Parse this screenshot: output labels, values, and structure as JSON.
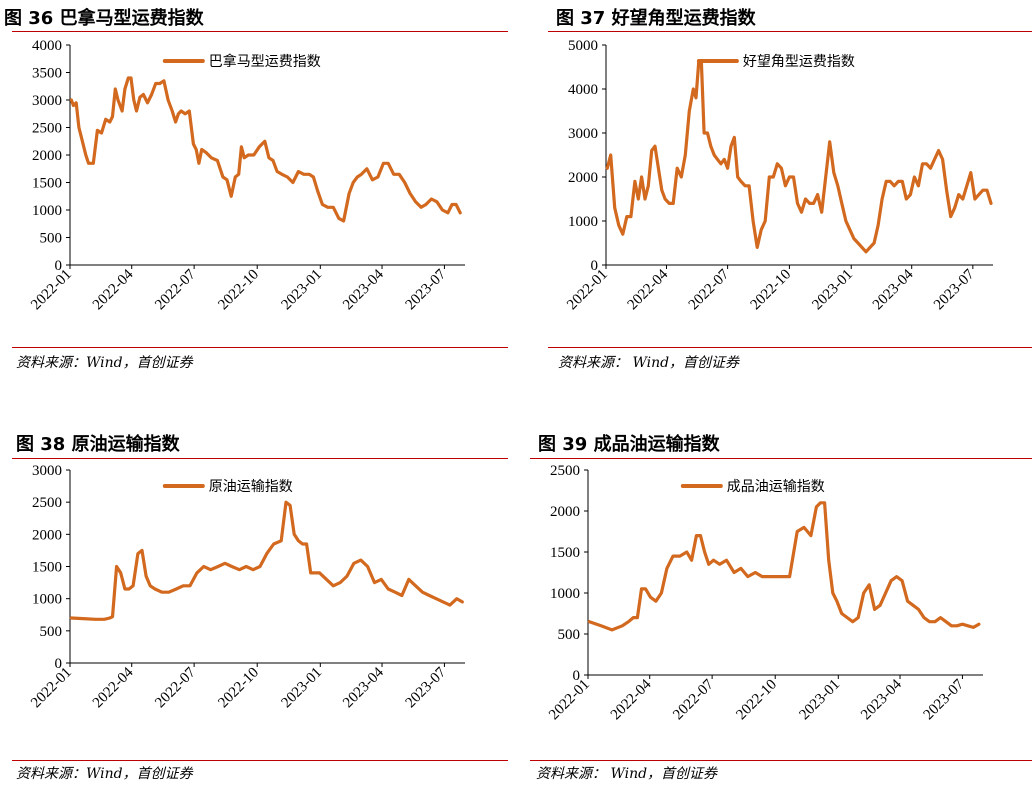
{
  "line_color": "#d2691e",
  "rule_color": "#c00000",
  "chart_data": [
    {
      "type": "line",
      "figure_label": "图 36 巴拿马型运费指数",
      "source": "资料来源：Wind，首创证券",
      "ylim": [
        0,
        4000
      ],
      "yticks": [
        "0",
        "500",
        "1000",
        "1500",
        "2000",
        "2500",
        "3000",
        "3500",
        "4000"
      ],
      "xlim": [
        "2022-01-01",
        "2023-07-31"
      ],
      "xticks": [
        {
          "label": "2022-01",
          "date": "2022-01-01"
        },
        {
          "label": "2022-04",
          "date": "2022-04-01"
        },
        {
          "label": "2022-07",
          "date": "2022-07-01"
        },
        {
          "label": "2022-10",
          "date": "2022-10-01"
        },
        {
          "label": "2023-01",
          "date": "2023-01-01"
        },
        {
          "label": "2023-04",
          "date": "2023-04-01"
        },
        {
          "label": "2023-07",
          "date": "2023-07-01"
        }
      ],
      "series": [
        {
          "name": "巴拿马型运费指数",
          "x": [
            "2022-01-03",
            "2022-01-06",
            "2022-01-10",
            "2022-01-14",
            "2022-01-18",
            "2022-01-24",
            "2022-01-28",
            "2022-02-04",
            "2022-02-10",
            "2022-02-16",
            "2022-02-22",
            "2022-02-28",
            "2022-03-04",
            "2022-03-08",
            "2022-03-12",
            "2022-03-18",
            "2022-03-22",
            "2022-03-27",
            "2022-03-31",
            "2022-04-04",
            "2022-04-08",
            "2022-04-13",
            "2022-04-18",
            "2022-04-24",
            "2022-04-30",
            "2022-05-06",
            "2022-05-12",
            "2022-05-18",
            "2022-05-24",
            "2022-05-30",
            "2022-06-04",
            "2022-06-08",
            "2022-06-12",
            "2022-06-18",
            "2022-06-24",
            "2022-06-30",
            "2022-07-04",
            "2022-07-08",
            "2022-07-12",
            "2022-07-18",
            "2022-07-26",
            "2022-08-04",
            "2022-08-12",
            "2022-08-18",
            "2022-08-24",
            "2022-08-30",
            "2022-09-04",
            "2022-09-08",
            "2022-09-12",
            "2022-09-18",
            "2022-09-26",
            "2022-10-04",
            "2022-10-12",
            "2022-10-18",
            "2022-10-24",
            "2022-10-30",
            "2022-11-06",
            "2022-11-14",
            "2022-11-22",
            "2022-11-30",
            "2022-12-08",
            "2022-12-16",
            "2022-12-22",
            "2022-12-28",
            "2023-01-04",
            "2023-01-12",
            "2023-01-20",
            "2023-01-28",
            "2023-02-04",
            "2023-02-12",
            "2023-02-18",
            "2023-02-24",
            "2023-03-02",
            "2023-03-10",
            "2023-03-18",
            "2023-03-26",
            "2023-04-03",
            "2023-04-10",
            "2023-04-18",
            "2023-04-26",
            "2023-05-04",
            "2023-05-12",
            "2023-05-20",
            "2023-05-28",
            "2023-06-04",
            "2023-06-12",
            "2023-06-20",
            "2023-06-28",
            "2023-07-06",
            "2023-07-12",
            "2023-07-18",
            "2023-07-24"
          ],
          "values": [
            3000,
            2900,
            2950,
            2500,
            2300,
            2000,
            1850,
            1850,
            2450,
            2400,
            2650,
            2600,
            2700,
            3200,
            3000,
            2800,
            3200,
            3400,
            3400,
            3000,
            2800,
            3050,
            3100,
            2950,
            3100,
            3300,
            3300,
            3350,
            3000,
            2800,
            2600,
            2750,
            2800,
            2750,
            2800,
            2200,
            2100,
            1850,
            2100,
            2050,
            1950,
            1900,
            1600,
            1550,
            1250,
            1600,
            1650,
            2150,
            1950,
            2000,
            2000,
            2150,
            2250,
            1950,
            1900,
            1700,
            1650,
            1600,
            1500,
            1700,
            1650,
            1650,
            1600,
            1350,
            1100,
            1050,
            1050,
            850,
            800,
            1300,
            1500,
            1600,
            1650,
            1750,
            1550,
            1600,
            1850,
            1850,
            1650,
            1650,
            1500,
            1300,
            1150,
            1050,
            1100,
            1200,
            1150,
            1000,
            950,
            1100,
            1100,
            950
          ]
        }
      ]
    },
    {
      "type": "line",
      "figure_label": "图 37 好望角型运费指数",
      "source": "资料来源： Wind，首创证券",
      "ylim": [
        0,
        5000
      ],
      "yticks": [
        "0",
        "1000",
        "2000",
        "3000",
        "4000",
        "5000"
      ],
      "xlim": [
        "2022-01-01",
        "2023-07-31"
      ],
      "xticks": [
        {
          "label": "2022-01",
          "date": "2022-01-01"
        },
        {
          "label": "2022-04",
          "date": "2022-04-01"
        },
        {
          "label": "2022-07",
          "date": "2022-07-01"
        },
        {
          "label": "2022-10",
          "date": "2022-10-01"
        },
        {
          "label": "2023-01",
          "date": "2023-01-01"
        },
        {
          "label": "2023-04",
          "date": "2023-04-01"
        },
        {
          "label": "2023-07",
          "date": "2023-07-01"
        }
      ],
      "series": [
        {
          "name": "好望角型运费指数",
          "x": [
            "2022-01-03",
            "2022-01-08",
            "2022-01-14",
            "2022-01-20",
            "2022-01-26",
            "2022-02-01",
            "2022-02-07",
            "2022-02-13",
            "2022-02-18",
            "2022-02-23",
            "2022-02-28",
            "2022-03-05",
            "2022-03-10",
            "2022-03-15",
            "2022-03-20",
            "2022-03-25",
            "2022-03-30",
            "2022-04-05",
            "2022-04-11",
            "2022-04-17",
            "2022-04-23",
            "2022-04-29",
            "2022-05-05",
            "2022-05-11",
            "2022-05-15",
            "2022-05-19",
            "2022-05-23",
            "2022-05-27",
            "2022-06-01",
            "2022-06-06",
            "2022-06-11",
            "2022-06-16",
            "2022-06-21",
            "2022-06-26",
            "2022-07-01",
            "2022-07-06",
            "2022-07-11",
            "2022-07-16",
            "2022-07-21",
            "2022-07-27",
            "2022-08-02",
            "2022-08-08",
            "2022-08-14",
            "2022-08-20",
            "2022-08-26",
            "2022-09-01",
            "2022-09-07",
            "2022-09-13",
            "2022-09-19",
            "2022-09-25",
            "2022-10-01",
            "2022-10-07",
            "2022-10-13",
            "2022-10-19",
            "2022-10-25",
            "2022-10-31",
            "2022-11-06",
            "2022-11-12",
            "2022-11-18",
            "2022-11-24",
            "2022-11-30",
            "2022-12-06",
            "2022-12-12",
            "2022-12-18",
            "2022-12-24",
            "2022-12-30",
            "2023-01-05",
            "2023-01-11",
            "2023-01-17",
            "2023-01-23",
            "2023-01-29",
            "2023-02-04",
            "2023-02-10",
            "2023-02-16",
            "2023-02-22",
            "2023-02-28",
            "2023-03-06",
            "2023-03-12",
            "2023-03-18",
            "2023-03-24",
            "2023-03-30",
            "2023-04-05",
            "2023-04-11",
            "2023-04-17",
            "2023-04-23",
            "2023-04-29",
            "2023-05-05",
            "2023-05-11",
            "2023-05-17",
            "2023-05-23",
            "2023-05-29",
            "2023-06-04",
            "2023-06-10",
            "2023-06-16",
            "2023-06-22",
            "2023-06-28",
            "2023-07-04",
            "2023-07-10",
            "2023-07-16",
            "2023-07-22",
            "2023-07-28"
          ],
          "values": [
            2200,
            2500,
            1300,
            900,
            700,
            1100,
            1100,
            1900,
            1500,
            2000,
            1500,
            1800,
            2600,
            2700,
            2200,
            1700,
            1500,
            1400,
            1400,
            2200,
            2000,
            2500,
            3500,
            4000,
            3800,
            4600,
            4600,
            3000,
            3000,
            2700,
            2500,
            2400,
            2300,
            2400,
            2200,
            2700,
            2900,
            2000,
            1900,
            1800,
            1800,
            1000,
            400,
            800,
            1000,
            2000,
            2000,
            2300,
            2200,
            1800,
            2000,
            2000,
            1400,
            1200,
            1500,
            1400,
            1400,
            1600,
            1200,
            2000,
            2800,
            2100,
            1800,
            1400,
            1000,
            800,
            600,
            500,
            400,
            300,
            400,
            500,
            900,
            1500,
            1900,
            1900,
            1800,
            1900,
            1900,
            1500,
            1600,
            2000,
            1800,
            2300,
            2300,
            2200,
            2400,
            2600,
            2400,
            1700,
            1100,
            1300,
            1600,
            1500,
            1800,
            2100,
            1500,
            1600,
            1700,
            1700,
            1400
          ]
        }
      ]
    },
    {
      "type": "line",
      "figure_label": "图 38 原油运输指数",
      "source": "资料来源：Wind，首创证券",
      "ylim": [
        0,
        3000
      ],
      "yticks": [
        "0",
        "500",
        "1000",
        "1500",
        "2000",
        "2500",
        "3000"
      ],
      "xlim": [
        "2022-01-01",
        "2023-07-31"
      ],
      "xticks": [
        {
          "label": "2022-01",
          "date": "2022-01-01"
        },
        {
          "label": "2022-04",
          "date": "2022-04-01"
        },
        {
          "label": "2022-07",
          "date": "2022-07-01"
        },
        {
          "label": "2022-10",
          "date": "2022-10-01"
        },
        {
          "label": "2023-01",
          "date": "2023-01-01"
        },
        {
          "label": "2023-04",
          "date": "2023-04-01"
        },
        {
          "label": "2023-07",
          "date": "2023-07-01"
        }
      ],
      "series": [
        {
          "name": "原油运输指数",
          "x": [
            "2022-01-03",
            "2022-01-20",
            "2022-02-07",
            "2022-02-20",
            "2022-02-28",
            "2022-03-04",
            "2022-03-10",
            "2022-03-16",
            "2022-03-22",
            "2022-03-28",
            "2022-04-03",
            "2022-04-10",
            "2022-04-16",
            "2022-04-22",
            "2022-04-28",
            "2022-05-05",
            "2022-05-15",
            "2022-05-25",
            "2022-06-05",
            "2022-06-15",
            "2022-06-25",
            "2022-07-05",
            "2022-07-15",
            "2022-07-25",
            "2022-08-05",
            "2022-08-15",
            "2022-08-25",
            "2022-09-05",
            "2022-09-15",
            "2022-09-25",
            "2022-10-05",
            "2022-10-15",
            "2022-10-25",
            "2022-11-05",
            "2022-11-12",
            "2022-11-18",
            "2022-11-24",
            "2022-11-30",
            "2022-12-06",
            "2022-12-12",
            "2022-12-18",
            "2022-12-24",
            "2022-12-31",
            "2023-01-10",
            "2023-01-20",
            "2023-01-30",
            "2023-02-09",
            "2023-02-19",
            "2023-03-01",
            "2023-03-11",
            "2023-03-21",
            "2023-03-31",
            "2023-04-10",
            "2023-04-20",
            "2023-04-30",
            "2023-05-10",
            "2023-05-20",
            "2023-05-30",
            "2023-06-09",
            "2023-06-19",
            "2023-06-29",
            "2023-07-09",
            "2023-07-19",
            "2023-07-27"
          ],
          "values": [
            700,
            690,
            680,
            680,
            700,
            720,
            1500,
            1400,
            1150,
            1150,
            1200,
            1700,
            1750,
            1350,
            1200,
            1150,
            1100,
            1100,
            1150,
            1200,
            1200,
            1400,
            1500,
            1450,
            1500,
            1550,
            1500,
            1450,
            1500,
            1450,
            1500,
            1700,
            1850,
            1900,
            2500,
            2450,
            2000,
            1900,
            1850,
            1850,
            1400,
            1400,
            1400,
            1300,
            1200,
            1250,
            1350,
            1550,
            1600,
            1500,
            1250,
            1300,
            1150,
            1100,
            1050,
            1300,
            1200,
            1100,
            1050,
            1000,
            950,
            900,
            1000,
            950
          ]
        }
      ]
    },
    {
      "type": "line",
      "figure_label": "图 39 成品油运输指数",
      "source": "资料来源： Wind，首创证券",
      "ylim": [
        0,
        2500
      ],
      "yticks": [
        "0",
        "500",
        "1000",
        "1500",
        "2000",
        "2500"
      ],
      "xlim": [
        "2022-01-01",
        "2023-07-31"
      ],
      "xticks": [
        {
          "label": "2022-01",
          "date": "2022-01-01"
        },
        {
          "label": "2022-04",
          "date": "2022-04-01"
        },
        {
          "label": "2022-07",
          "date": "2022-07-01"
        },
        {
          "label": "2022-10",
          "date": "2022-10-01"
        },
        {
          "label": "2023-01",
          "date": "2023-01-01"
        },
        {
          "label": "2023-04",
          "date": "2023-04-01"
        },
        {
          "label": "2023-07",
          "date": "2023-07-01"
        }
      ],
      "series": [
        {
          "name": "成品油运输指数",
          "x": [
            "2022-01-03",
            "2022-01-20",
            "2022-02-05",
            "2022-02-20",
            "2022-03-01",
            "2022-03-08",
            "2022-03-14",
            "2022-03-20",
            "2022-03-26",
            "2022-04-02",
            "2022-04-10",
            "2022-04-18",
            "2022-04-26",
            "2022-05-05",
            "2022-05-15",
            "2022-05-25",
            "2022-06-01",
            "2022-06-08",
            "2022-06-14",
            "2022-06-20",
            "2022-06-26",
            "2022-07-03",
            "2022-07-12",
            "2022-07-22",
            "2022-08-02",
            "2022-08-12",
            "2022-08-22",
            "2022-09-02",
            "2022-09-12",
            "2022-09-22",
            "2022-10-02",
            "2022-10-12",
            "2022-10-22",
            "2022-11-02",
            "2022-11-12",
            "2022-11-22",
            "2022-11-30",
            "2022-12-06",
            "2022-12-12",
            "2022-12-18",
            "2022-12-24",
            "2022-12-30",
            "2023-01-06",
            "2023-01-14",
            "2023-01-22",
            "2023-01-30",
            "2023-02-07",
            "2023-02-15",
            "2023-02-23",
            "2023-03-03",
            "2023-03-11",
            "2023-03-19",
            "2023-03-27",
            "2023-04-04",
            "2023-04-12",
            "2023-04-20",
            "2023-04-28",
            "2023-05-06",
            "2023-05-14",
            "2023-05-22",
            "2023-05-30",
            "2023-06-07",
            "2023-06-15",
            "2023-06-23",
            "2023-07-01",
            "2023-07-09",
            "2023-07-17",
            "2023-07-25"
          ],
          "values": [
            650,
            600,
            550,
            600,
            650,
            700,
            700,
            1050,
            1050,
            950,
            900,
            1000,
            1300,
            1450,
            1450,
            1500,
            1400,
            1700,
            1700,
            1500,
            1350,
            1400,
            1350,
            1400,
            1250,
            1300,
            1200,
            1250,
            1200,
            1200,
            1200,
            1200,
            1200,
            1750,
            1800,
            1700,
            2050,
            2100,
            2100,
            1400,
            1000,
            900,
            750,
            700,
            650,
            700,
            1000,
            1100,
            800,
            850,
            1000,
            1150,
            1200,
            1150,
            900,
            850,
            800,
            700,
            650,
            650,
            700,
            650,
            600,
            600,
            620,
            600,
            580,
            620
          ]
        }
      ]
    }
  ]
}
